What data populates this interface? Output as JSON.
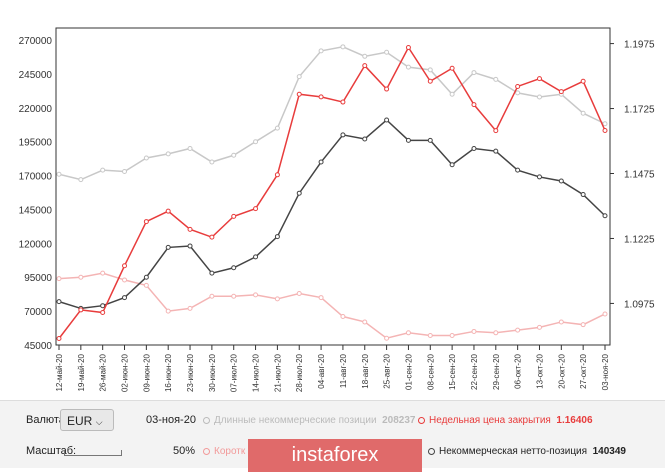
{
  "chart_data": {
    "type": "line",
    "x": [
      "12-май-20",
      "19-май-20",
      "26-май-20",
      "02-июн-20",
      "09-июн-20",
      "16-июн-20",
      "23-июн-20",
      "30-июн-20",
      "07-июл-20",
      "14-июл-20",
      "21-июл-20",
      "28-июл-20",
      "04-авг-20",
      "11-авг-20",
      "18-авг-20",
      "25-авг-20",
      "01-сен-20",
      "08-сен-20",
      "15-сен-20",
      "22-сен-20",
      "29-сен-20",
      "06-окт-20",
      "13-окт-20",
      "20-окт-20",
      "27-окт-20",
      "03-ноя-20"
    ],
    "left_ticks": [
      "270000",
      "245000",
      "220000",
      "195000",
      "170000",
      "145000",
      "120000",
      "95000",
      "70000",
      "45000"
    ],
    "left_ylim": [
      45000,
      270000
    ],
    "right_ticks": [
      "1.1975",
      "1.1725",
      "1.1475",
      "1.1225",
      "1.0975"
    ],
    "right_ylim": [
      1.0815,
      1.2035
    ],
    "series": [
      {
        "name": "Длинные некоммерческие позиции",
        "axis": "left",
        "color": "#c8c8c8",
        "values": [
          171000,
          167000,
          174000,
          173000,
          183000,
          186000,
          190000,
          180000,
          185000,
          195000,
          205000,
          243000,
          262000,
          265000,
          258000,
          261000,
          250000,
          248000,
          230000,
          246000,
          241000,
          231000,
          228000,
          230000,
          216000,
          208237
        ]
      },
      {
        "name": "Короткие некоммерческие позиции",
        "axis": "left",
        "color": "#f4b4b4",
        "values": [
          94000,
          95000,
          98000,
          93000,
          89000,
          70000,
          72000,
          81000,
          81000,
          82000,
          79000,
          83000,
          80000,
          66000,
          62000,
          50000,
          54000,
          52000,
          52000,
          55000,
          54000,
          56000,
          58000,
          62000,
          60000,
          67888
        ]
      },
      {
        "name": "Некоммерческая нетто-позиция",
        "axis": "left",
        "color": "#444444",
        "values": [
          77000,
          72000,
          74000,
          80000,
          95000,
          117000,
          118000,
          98000,
          102000,
          110000,
          125000,
          157000,
          180000,
          200000,
          197000,
          211000,
          196000,
          196000,
          178000,
          190000,
          188000,
          174000,
          169000,
          166000,
          156000,
          140349
        ]
      },
      {
        "name": "Недельная цена закрытия",
        "axis": "right",
        "color": "#e83c3c",
        "values": [
          1.084,
          1.095,
          1.094,
          1.112,
          1.129,
          1.133,
          1.126,
          1.123,
          1.131,
          1.134,
          1.147,
          1.178,
          1.177,
          1.175,
          1.189,
          1.18,
          1.196,
          1.183,
          1.188,
          1.174,
          1.164,
          1.181,
          1.184,
          1.179,
          1.183,
          1.16406
        ]
      }
    ]
  },
  "panel": {
    "currency_label": "Валюта:",
    "currency_value": "EUR",
    "date": "03-ноя-20",
    "long_label": "Длинные некоммерческие позиции",
    "long_value": "208237",
    "price_label": "Недельная цена закрытия",
    "price_value": "1.16406",
    "scale_label": "Масштаб:",
    "scale_value": "50%",
    "short_label": "Коротк",
    "net_label": "Некоммерческая нетто-позиция",
    "net_value": "140349",
    "logo": "instaforex"
  }
}
